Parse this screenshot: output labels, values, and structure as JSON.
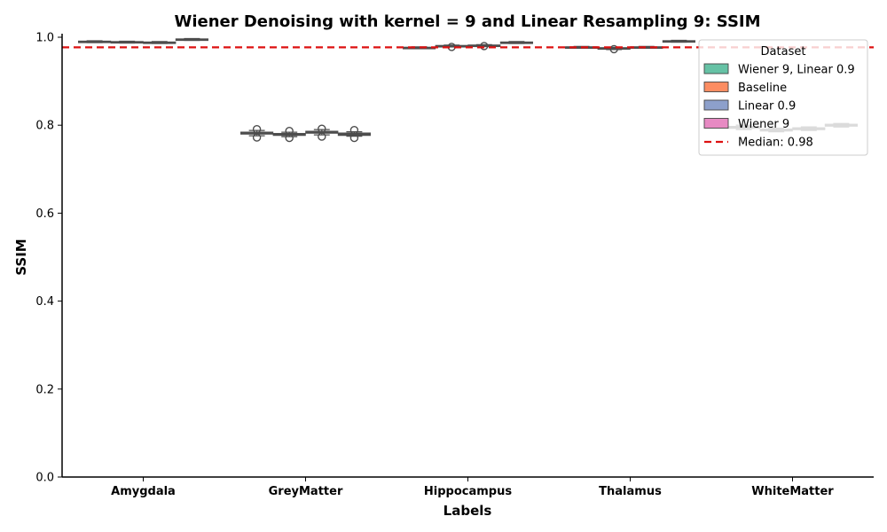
{
  "chart_data": {
    "type": "box",
    "title": "Wiener Denoising with kernel = 9 and Linear Resampling 9: SSIM",
    "xlabel": "Labels",
    "ylabel": "SSIM",
    "ylim": [
      0,
      1.0
    ],
    "yticks": [
      "0.0",
      "0.2",
      "0.4",
      "0.6",
      "0.8",
      "1.0"
    ],
    "categories": [
      "Amygdala",
      "GreyMatter",
      "Hippocampus",
      "Thalamus",
      "WhiteMatter"
    ],
    "legend_title": "Dataset",
    "legend_placement": "top-right",
    "grid": false,
    "series": [
      {
        "name": "Wiener 9, Linear 0.9",
        "color": "#66c2a5",
        "boxes": [
          {
            "q1": 0.989,
            "median": 0.99,
            "q3": 0.991,
            "whisker_low": 0.988,
            "whisker_high": 0.992,
            "outliers": []
          },
          {
            "q1": 0.78,
            "median": 0.782,
            "q3": 0.784,
            "whisker_low": 0.776,
            "whisker_high": 0.788,
            "outliers": [
              0.772,
              0.791
            ]
          },
          {
            "q1": 0.975,
            "median": 0.976,
            "q3": 0.977,
            "whisker_low": 0.974,
            "whisker_high": 0.978,
            "outliers": []
          },
          {
            "q1": 0.976,
            "median": 0.977,
            "q3": 0.978,
            "whisker_low": 0.975,
            "whisker_high": 0.979,
            "outliers": []
          },
          {
            "q1": 0.793,
            "median": 0.795,
            "q3": 0.797,
            "whisker_low": 0.79,
            "whisker_high": 0.8,
            "outliers": []
          }
        ]
      },
      {
        "name": "Baseline",
        "color": "#fc8d62",
        "boxes": [
          {
            "q1": 0.988,
            "median": 0.989,
            "q3": 0.99,
            "whisker_low": 0.987,
            "whisker_high": 0.991,
            "outliers": []
          },
          {
            "q1": 0.777,
            "median": 0.779,
            "q3": 0.781,
            "whisker_low": 0.774,
            "whisker_high": 0.784,
            "outliers": [
              0.771,
              0.787
            ]
          },
          {
            "q1": 0.979,
            "median": 0.98,
            "q3": 0.981,
            "whisker_low": 0.978,
            "whisker_high": 0.982,
            "outliers": [
              0.978
            ]
          },
          {
            "q1": 0.973,
            "median": 0.975,
            "q3": 0.976,
            "whisker_low": 0.972,
            "whisker_high": 0.977,
            "outliers": [
              0.973
            ]
          },
          {
            "q1": 0.787,
            "median": 0.789,
            "q3": 0.791,
            "whisker_low": 0.785,
            "whisker_high": 0.793,
            "outliers": []
          }
        ]
      },
      {
        "name": "Linear 0.9",
        "color": "#8da0cb",
        "boxes": [
          {
            "q1": 0.987,
            "median": 0.988,
            "q3": 0.989,
            "whisker_low": 0.986,
            "whisker_high": 0.99,
            "outliers": []
          },
          {
            "q1": 0.782,
            "median": 0.784,
            "q3": 0.786,
            "whisker_low": 0.778,
            "whisker_high": 0.79,
            "outliers": [
              0.774,
              0.792
            ]
          },
          {
            "q1": 0.98,
            "median": 0.981,
            "q3": 0.982,
            "whisker_low": 0.979,
            "whisker_high": 0.983,
            "outliers": [
              0.98
            ]
          },
          {
            "q1": 0.976,
            "median": 0.977,
            "q3": 0.978,
            "whisker_low": 0.975,
            "whisker_high": 0.979,
            "outliers": []
          },
          {
            "q1": 0.79,
            "median": 0.792,
            "q3": 0.794,
            "whisker_low": 0.788,
            "whisker_high": 0.796,
            "outliers": []
          }
        ]
      },
      {
        "name": "Wiener 9",
        "color": "#e78ac3",
        "boxes": [
          {
            "q1": 0.994,
            "median": 0.995,
            "q3": 0.996,
            "whisker_low": 0.993,
            "whisker_high": 0.997,
            "outliers": []
          },
          {
            "q1": 0.777,
            "median": 0.78,
            "q3": 0.782,
            "whisker_low": 0.775,
            "whisker_high": 0.785,
            "outliers": [
              0.771,
              0.789
            ]
          },
          {
            "q1": 0.987,
            "median": 0.988,
            "q3": 0.989,
            "whisker_low": 0.986,
            "whisker_high": 0.99,
            "outliers": []
          },
          {
            "q1": 0.99,
            "median": 0.991,
            "q3": 0.992,
            "whisker_low": 0.989,
            "whisker_high": 0.993,
            "outliers": []
          },
          {
            "q1": 0.798,
            "median": 0.8,
            "q3": 0.802,
            "whisker_low": 0.796,
            "whisker_high": 0.804,
            "outliers": []
          }
        ]
      }
    ],
    "reference_line": {
      "name": "Median: 0.98",
      "value": 0.977,
      "color": "#dd1111",
      "style": "dashed"
    }
  }
}
